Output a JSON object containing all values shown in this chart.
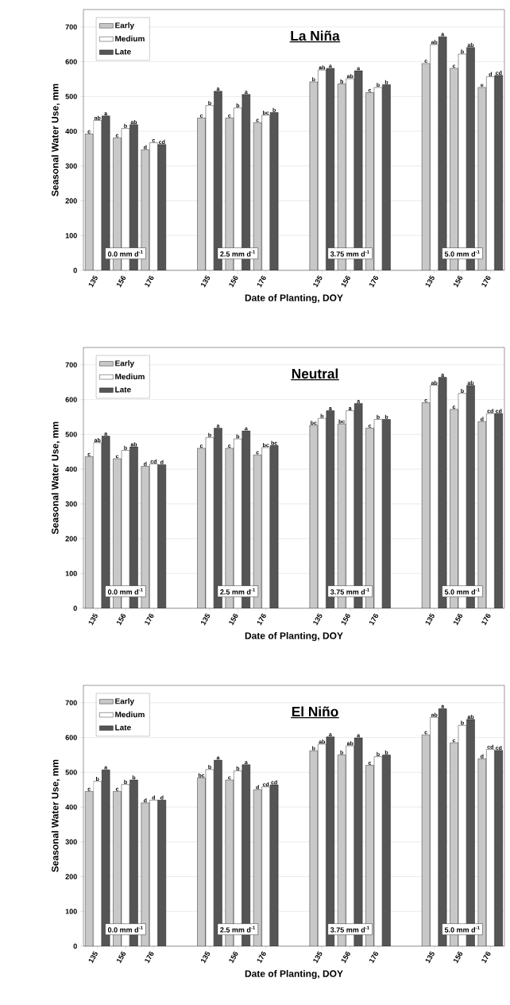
{
  "chart_data": [
    {
      "type": "bar",
      "title": "La Niña",
      "xlabel": "Date of Planting, DOY",
      "ylabel": "Seasonal Water Use, mm",
      "categories": [
        "135",
        "156",
        "176",
        null,
        "135",
        "156",
        "176",
        null,
        "135",
        "156",
        "176",
        null,
        "135",
        "156",
        "176"
      ],
      "series": [
        {
          "name": "Early",
          "color": "#c8c8c8",
          "values": [
            392,
            381,
            347,
            null,
            438,
            438,
            425,
            null,
            542,
            536,
            511,
            null,
            595,
            581,
            526
          ],
          "value_labels": [
            "c",
            "c",
            "d",
            null,
            "c",
            "c",
            "c",
            null,
            "b",
            "b",
            "c",
            null,
            "c",
            "c",
            "e"
          ]
        },
        {
          "name": "Medium",
          "color": "#ffffff",
          "values": [
            431,
            408,
            367,
            null,
            474,
            467,
            446,
            null,
            576,
            551,
            526,
            null,
            649,
            622,
            557
          ],
          "value_labels": [
            "ab",
            "b",
            "c",
            null,
            "b",
            "b",
            "bc",
            null,
            "ab",
            "ab",
            "b",
            null,
            "ab",
            "b",
            "d"
          ]
        },
        {
          "name": "Late",
          "color": "#555555",
          "values": [
            444,
            419,
            362,
            null,
            515,
            506,
            454,
            null,
            581,
            574,
            534,
            null,
            672,
            641,
            561
          ],
          "value_labels": [
            "a",
            "ab",
            "cd",
            null,
            "a",
            "a",
            "b",
            null,
            "a",
            "a",
            "b",
            null,
            "a",
            "ab",
            "cd"
          ]
        }
      ],
      "ylim": [
        0,
        750
      ],
      "yticks": [
        0,
        100,
        200,
        300,
        400,
        500,
        600,
        700
      ],
      "grid": "y",
      "legend": "top left",
      "annotations": [
        "0.0 mm d$^{-1}$",
        "2.5 mm d$^{-1}$",
        "3.75 mm d$^{-1}$",
        "5.0 mm d$^{-1}$"
      ]
    },
    {
      "type": "bar",
      "title": "Neutral",
      "xlabel": "Date of Planting, DOY",
      "ylabel": "Seasonal Water Use, mm",
      "categories": [
        "135",
        "156",
        "176",
        null,
        "135",
        "156",
        "176",
        null,
        "135",
        "156",
        "176",
        null,
        "135",
        "156",
        "176"
      ],
      "series": [
        {
          "name": "Early",
          "color": "#c8c8c8",
          "values": [
            436,
            430,
            408,
            null,
            460,
            460,
            441,
            null,
            526,
            530,
            518,
            null,
            591,
            572,
            537
          ],
          "value_labels": [
            "c",
            "c",
            "d",
            null,
            "c",
            "c",
            "c",
            null,
            "bc",
            "bc",
            "c",
            null,
            "c",
            "c",
            "d"
          ]
        },
        {
          "name": "Medium",
          "color": "#ffffff",
          "values": [
            476,
            454,
            415,
            null,
            491,
            487,
            462,
            null,
            546,
            568,
            543,
            null,
            641,
            618,
            560
          ],
          "value_labels": [
            "ab",
            "b",
            "cd",
            null,
            "b",
            "b",
            "bc",
            null,
            "b",
            "a",
            "b",
            null,
            "ab",
            "b",
            "cd"
          ]
        },
        {
          "name": "Late",
          "color": "#555555",
          "values": [
            495,
            464,
            413,
            null,
            518,
            510,
            468,
            null,
            568,
            589,
            543,
            null,
            664,
            641,
            560
          ],
          "value_labels": [
            "a",
            "ab",
            "d",
            null,
            "a",
            "a",
            "bc",
            null,
            "a",
            "a",
            "b",
            null,
            "a",
            "ab",
            "cd"
          ]
        }
      ],
      "ylim": [
        0,
        750
      ],
      "yticks": [
        0,
        100,
        200,
        300,
        400,
        500,
        600,
        700
      ],
      "grid": "y",
      "legend": "top left",
      "annotations": [
        "0.0 mm d$^{-1}$",
        "2.5 mm d$^{-1}$",
        "3.75 mm d$^{-1}$",
        "5.0 mm d$^{-1}$"
      ]
    },
    {
      "type": "bar",
      "title": "El Niño",
      "xlabel": "Date of Planting, DOY",
      "ylabel": "Seasonal Water Use, mm",
      "categories": [
        "135",
        "156",
        "176",
        null,
        "135",
        "156",
        "176",
        null,
        "135",
        "156",
        "176",
        null,
        "135",
        "156",
        "176"
      ],
      "series": [
        {
          "name": "Early",
          "color": "#c8c8c8",
          "values": [
            445,
            445,
            412,
            null,
            484,
            478,
            450,
            null,
            562,
            550,
            520,
            null,
            608,
            585,
            539
          ],
          "value_labels": [
            "c",
            "c",
            "d",
            null,
            "bc",
            "c",
            "d",
            null,
            "b",
            "b",
            "c",
            null,
            "c",
            "c",
            "d"
          ]
        },
        {
          "name": "Medium",
          "color": "#ffffff",
          "values": [
            474,
            465,
            420,
            null,
            508,
            504,
            458,
            null,
            581,
            576,
            545,
            null,
            658,
            635,
            566
          ],
          "value_labels": [
            "b",
            "b",
            "d",
            null,
            "b",
            "b",
            "cd",
            null,
            "ab",
            "ab",
            "b",
            null,
            "ab",
            "b",
            "cd"
          ]
        },
        {
          "name": "Late",
          "color": "#555555",
          "values": [
            507,
            478,
            420,
            null,
            535,
            522,
            464,
            null,
            602,
            599,
            550,
            null,
            683,
            652,
            563
          ],
          "value_labels": [
            "a",
            "b",
            "d",
            null,
            "a",
            "a",
            "cd",
            null,
            "a",
            "a",
            "b",
            null,
            "a",
            "ab",
            "cd"
          ]
        }
      ],
      "ylim": [
        0,
        750
      ],
      "yticks": [
        0,
        100,
        200,
        300,
        400,
        500,
        600,
        700
      ],
      "grid": "y",
      "legend": "top left",
      "annotations": [
        "0.0 mm d$^{-1}$",
        "2.5 mm d$^{-1}$",
        "3.75 mm d$^{-1}$",
        "5.0 mm d$^{-1}$"
      ]
    }
  ]
}
